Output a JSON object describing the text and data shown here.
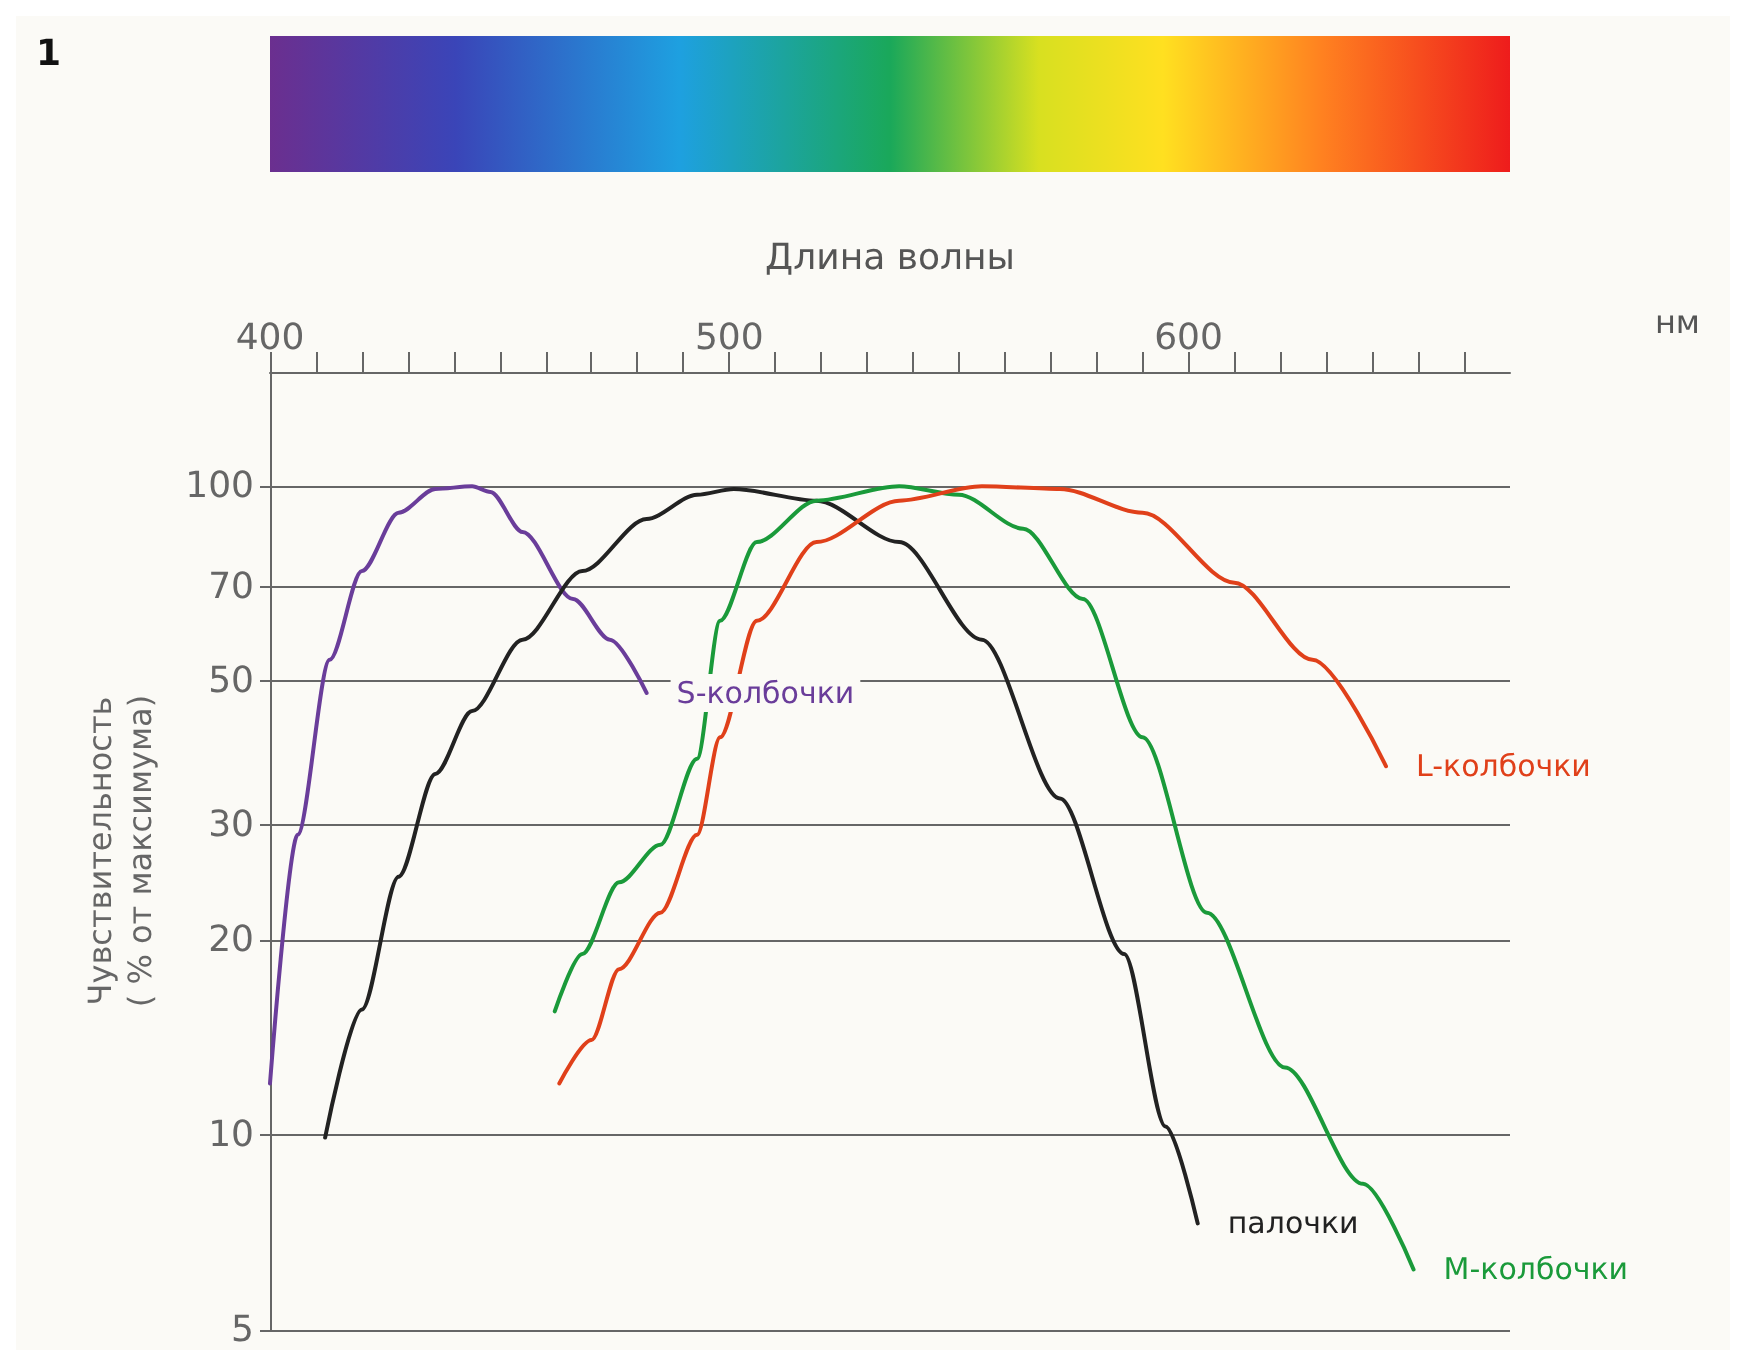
{
  "chart_data": {
    "type": "line",
    "xlabel": "Длина волны",
    "ylabel": "Чувствительность\n( % от максимума)",
    "annotations": [
      "1",
      "нм"
    ],
    "xlim": [
      400,
      670
    ],
    "xticks": [
      400,
      {
        "value": 410,
        "label": null
      },
      {
        "value": 420,
        "label": null
      },
      {
        "value": 430,
        "label": null
      },
      {
        "value": 440,
        "label": null
      },
      {
        "value": 450,
        "label": null
      },
      {
        "value": 460,
        "label": null
      },
      {
        "value": 470,
        "label": null
      },
      {
        "value": 480,
        "label": null
      },
      {
        "value": 490,
        "label": null
      },
      500,
      {
        "value": 510,
        "label": null
      },
      {
        "value": 520,
        "label": null
      },
      {
        "value": 530,
        "label": null
      },
      {
        "value": 540,
        "label": null
      },
      {
        "value": 550,
        "label": null
      },
      {
        "value": 560,
        "label": null
      },
      {
        "value": 570,
        "label": null
      },
      {
        "value": 580,
        "label": null
      },
      {
        "value": 590,
        "label": null
      },
      600,
      {
        "value": 610,
        "label": null
      },
      {
        "value": 620,
        "label": null
      },
      {
        "value": 630,
        "label": null
      },
      {
        "value": 640,
        "label": null
      },
      {
        "value": 650,
        "label": null
      },
      {
        "value": 660,
        "label": null
      }
    ],
    "ylim": [
      5,
      150
    ],
    "yticks": [
      5,
      10,
      20,
      30,
      50,
      70,
      100
    ],
    "log": "y",
    "grid": "y",
    "legend": false,
    "marker": "none",
    "line_style": "solid",
    "series": [
      {
        "name": "S-колбочки",
        "color": "#6a3d9a",
        "x": [
          400,
          406,
          413,
          420,
          428,
          436,
          444,
          448,
          455,
          466,
          474,
          482
        ],
        "values": [
          12,
          29,
          54,
          74,
          91,
          99,
          100,
          98,
          85,
          67,
          58,
          48
        ]
      },
      {
        "name": "палочки",
        "color": "#222222",
        "x": [
          412,
          420,
          428,
          436,
          444,
          455,
          468,
          482,
          493,
          501,
          519,
          537,
          555,
          572,
          586,
          595,
          602
        ],
        "values": [
          9.9,
          15.6,
          25,
          36,
          45,
          58,
          74,
          89,
          97,
          99,
          95,
          82,
          58,
          33,
          19,
          10.3,
          7.3
        ]
      },
      {
        "name": "M-колбочки",
        "color": "#1a9a3a",
        "x": [
          462,
          468,
          476,
          485,
          493,
          498,
          506,
          519,
          537,
          550,
          564,
          577,
          590,
          604,
          621,
          638,
          649
        ],
        "values": [
          15.5,
          19,
          24.5,
          28,
          38,
          62,
          82,
          95,
          100,
          97,
          86,
          67,
          41,
          22,
          12.7,
          8.4,
          6.2
        ]
      },
      {
        "name": "L-колбочки",
        "color": "#e0401a",
        "x": [
          463,
          470,
          476,
          485,
          493,
          498,
          506,
          519,
          537,
          555,
          572,
          590,
          610,
          627,
          643
        ],
        "values": [
          12,
          14,
          18,
          22,
          29,
          41,
          62,
          82,
          95,
          100,
          99,
          91,
          71,
          54,
          37
        ]
      }
    ]
  }
}
